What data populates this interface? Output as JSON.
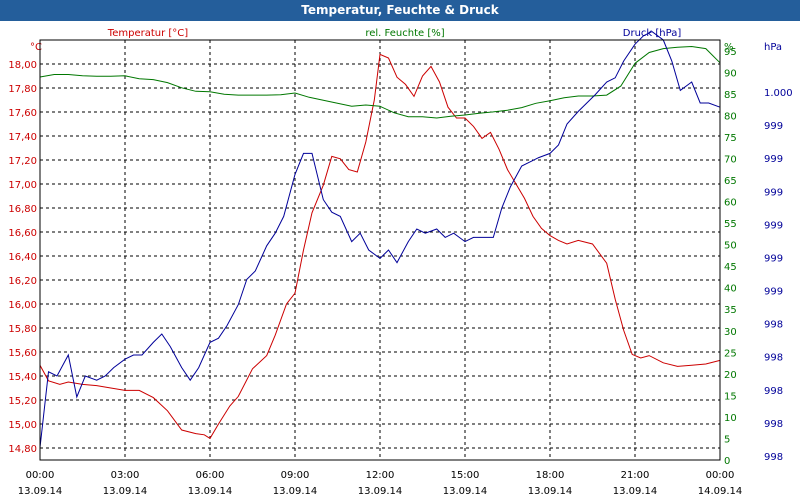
{
  "window": {
    "title": "Temperatur, Feuchte & Druck"
  },
  "colors": {
    "temperature": "#cc0000",
    "humidity": "#007700",
    "pressure": "#000099",
    "title_bar": "#245e9b",
    "grid": "#000000"
  },
  "chart_data": {
    "type": "line",
    "title": "Temperatur, Feuchte & Druck",
    "series_labels": {
      "temperature": "Temperatur [°C]",
      "humidity": "rel. Feuchte [%]",
      "pressure": "Druck [hPa]"
    },
    "axes": {
      "left": {
        "unit": "°C",
        "range": [
          14.7,
          18.2
        ],
        "ticks": [
          "18,00",
          "17,80",
          "17,60",
          "17,40",
          "17,20",
          "17,00",
          "16,80",
          "16,60",
          "16,40",
          "16,20",
          "16,00",
          "15,80",
          "15,60",
          "15,40",
          "15,20",
          "15,00",
          "14,80"
        ]
      },
      "humidity": {
        "unit": "%",
        "range": [
          0,
          97.5
        ],
        "ticks": [
          "95",
          "90",
          "85",
          "80",
          "75",
          "70",
          "65",
          "60",
          "55",
          "50",
          "45",
          "40",
          "35",
          "30",
          "25",
          "20",
          "15",
          "10",
          "5",
          "0"
        ]
      },
      "pressure": {
        "unit": "hPa",
        "range": [
          0,
          1
        ],
        "ticks": [
          "1.000",
          "999",
          "999",
          "999",
          "999",
          "999",
          "999",
          "998",
          "998",
          "998",
          "998",
          "998"
        ]
      }
    },
    "x_ticks": [
      {
        "time": "00:00",
        "date": "13.09.14"
      },
      {
        "time": "03:00",
        "date": "13.09.14"
      },
      {
        "time": "06:00",
        "date": "13.09.14"
      },
      {
        "time": "09:00",
        "date": "13.09.14"
      },
      {
        "time": "12:00",
        "date": "13.09.14"
      },
      {
        "time": "15:00",
        "date": "13.09.14"
      },
      {
        "time": "18:00",
        "date": "13.09.14"
      },
      {
        "time": "21:00",
        "date": "13.09.14"
      },
      {
        "time": "00:00",
        "date": "14.09.14"
      }
    ],
    "x_range_hours": [
      0,
      24
    ],
    "series": [
      {
        "name": "Temperatur [°C]",
        "key": "temperature",
        "axis": "left",
        "x": [
          0,
          0.3,
          0.7,
          1,
          1.5,
          2,
          2.5,
          3,
          3.5,
          4,
          4.5,
          5,
          5.5,
          5.8,
          6,
          6.3,
          6.7,
          7,
          7.5,
          8,
          8.3,
          8.7,
          9,
          9.3,
          9.6,
          10,
          10.3,
          10.6,
          10.9,
          11.2,
          11.5,
          11.8,
          12,
          12.3,
          12.6,
          12.9,
          13.2,
          13.5,
          13.8,
          14.1,
          14.4,
          14.7,
          15,
          15.3,
          15.6,
          15.9,
          16.2,
          16.5,
          16.8,
          17.1,
          17.4,
          17.7,
          18,
          18.3,
          18.6,
          19,
          19.5,
          20,
          20.3,
          20.6,
          20.9,
          21.2,
          21.5,
          22,
          22.5,
          23,
          23.5,
          24
        ],
        "values": [
          15.49,
          15.36,
          15.33,
          15.35,
          15.33,
          15.32,
          15.3,
          15.28,
          15.28,
          15.22,
          15.11,
          14.95,
          14.92,
          14.91,
          14.88,
          15.0,
          15.15,
          15.23,
          15.46,
          15.57,
          15.74,
          16.0,
          16.09,
          16.45,
          16.76,
          16.99,
          17.23,
          17.21,
          17.12,
          17.1,
          17.35,
          17.7,
          18.08,
          18.05,
          17.89,
          17.83,
          17.73,
          17.9,
          17.98,
          17.85,
          17.64,
          17.55,
          17.55,
          17.48,
          17.38,
          17.43,
          17.29,
          17.12,
          17.0,
          16.88,
          16.73,
          16.63,
          16.57,
          16.53,
          16.5,
          16.53,
          16.5,
          16.34,
          16.04,
          15.78,
          15.58,
          15.55,
          15.57,
          15.51,
          15.48,
          15.49,
          15.5,
          15.53
        ]
      },
      {
        "name": "rel. Feuchte [%]",
        "key": "humidity",
        "axis": "humidity",
        "x": [
          0,
          0.5,
          1,
          1.5,
          2,
          2.5,
          3,
          3.5,
          4,
          4.5,
          5,
          5.5,
          6,
          6.5,
          7,
          7.5,
          8,
          8.5,
          9,
          9.5,
          10,
          10.5,
          11,
          11.5,
          12,
          12.5,
          13,
          13.5,
          14,
          14.5,
          15,
          15.5,
          16,
          16.5,
          17,
          17.5,
          18,
          18.5,
          19,
          19.5,
          20,
          20.5,
          21,
          21.5,
          22,
          22.5,
          23,
          23.5,
          24
        ],
        "values": [
          88.9,
          89.5,
          89.5,
          89.2,
          89.1,
          89.1,
          89.2,
          88.5,
          88.3,
          87.6,
          86.4,
          85.6,
          85.5,
          84.9,
          84.7,
          84.7,
          84.7,
          84.8,
          85.2,
          84.2,
          83.5,
          82.8,
          82.1,
          82.4,
          82.1,
          80.6,
          79.7,
          79.7,
          79.4,
          79.8,
          80.1,
          80.5,
          80.8,
          81.2,
          81.8,
          82.8,
          83.4,
          84.1,
          84.5,
          84.5,
          84.7,
          86.8,
          92.1,
          94.6,
          95.5,
          95.8,
          96,
          95.5,
          92.2
        ]
      },
      {
        "name": "Druck [hPa]",
        "key": "pressure",
        "axis": "pressure",
        "x": [
          0,
          0.3,
          0.6,
          1,
          1.3,
          1.6,
          2,
          2.3,
          2.6,
          3,
          3.3,
          3.6,
          4,
          4.3,
          4.6,
          5,
          5.3,
          5.6,
          6,
          6.3,
          6.6,
          7,
          7.3,
          7.6,
          8,
          8.3,
          8.6,
          9,
          9.3,
          9.6,
          10,
          10.3,
          10.6,
          11,
          11.3,
          11.6,
          12,
          12.3,
          12.6,
          13,
          13.3,
          13.6,
          14,
          14.3,
          14.6,
          15,
          15.3,
          15.6,
          16,
          16.3,
          16.6,
          17,
          17.3,
          17.6,
          18,
          18.3,
          18.6,
          19,
          19.3,
          19.6,
          20,
          20.3,
          20.6,
          21,
          21.3,
          21.6,
          22,
          22.3,
          22.6,
          23,
          23.3,
          23.6,
          24
        ],
        "values": [
          0.03,
          0.21,
          0.2,
          0.25,
          0.15,
          0.2,
          0.19,
          0.2,
          0.22,
          0.24,
          0.25,
          0.25,
          0.28,
          0.3,
          0.27,
          0.22,
          0.19,
          0.22,
          0.28,
          0.29,
          0.32,
          0.37,
          0.43,
          0.45,
          0.51,
          0.54,
          0.58,
          0.68,
          0.73,
          0.73,
          0.62,
          0.59,
          0.58,
          0.52,
          0.54,
          0.5,
          0.48,
          0.5,
          0.47,
          0.52,
          0.55,
          0.54,
          0.55,
          0.53,
          0.54,
          0.52,
          0.53,
          0.53,
          0.53,
          0.6,
          0.65,
          0.7,
          0.71,
          0.72,
          0.73,
          0.75,
          0.8,
          0.83,
          0.85,
          0.87,
          0.9,
          0.91,
          0.95,
          0.99,
          1.01,
          1.02,
          1.0,
          0.95,
          0.88,
          0.9,
          0.85,
          0.85,
          0.84
        ]
      }
    ]
  }
}
